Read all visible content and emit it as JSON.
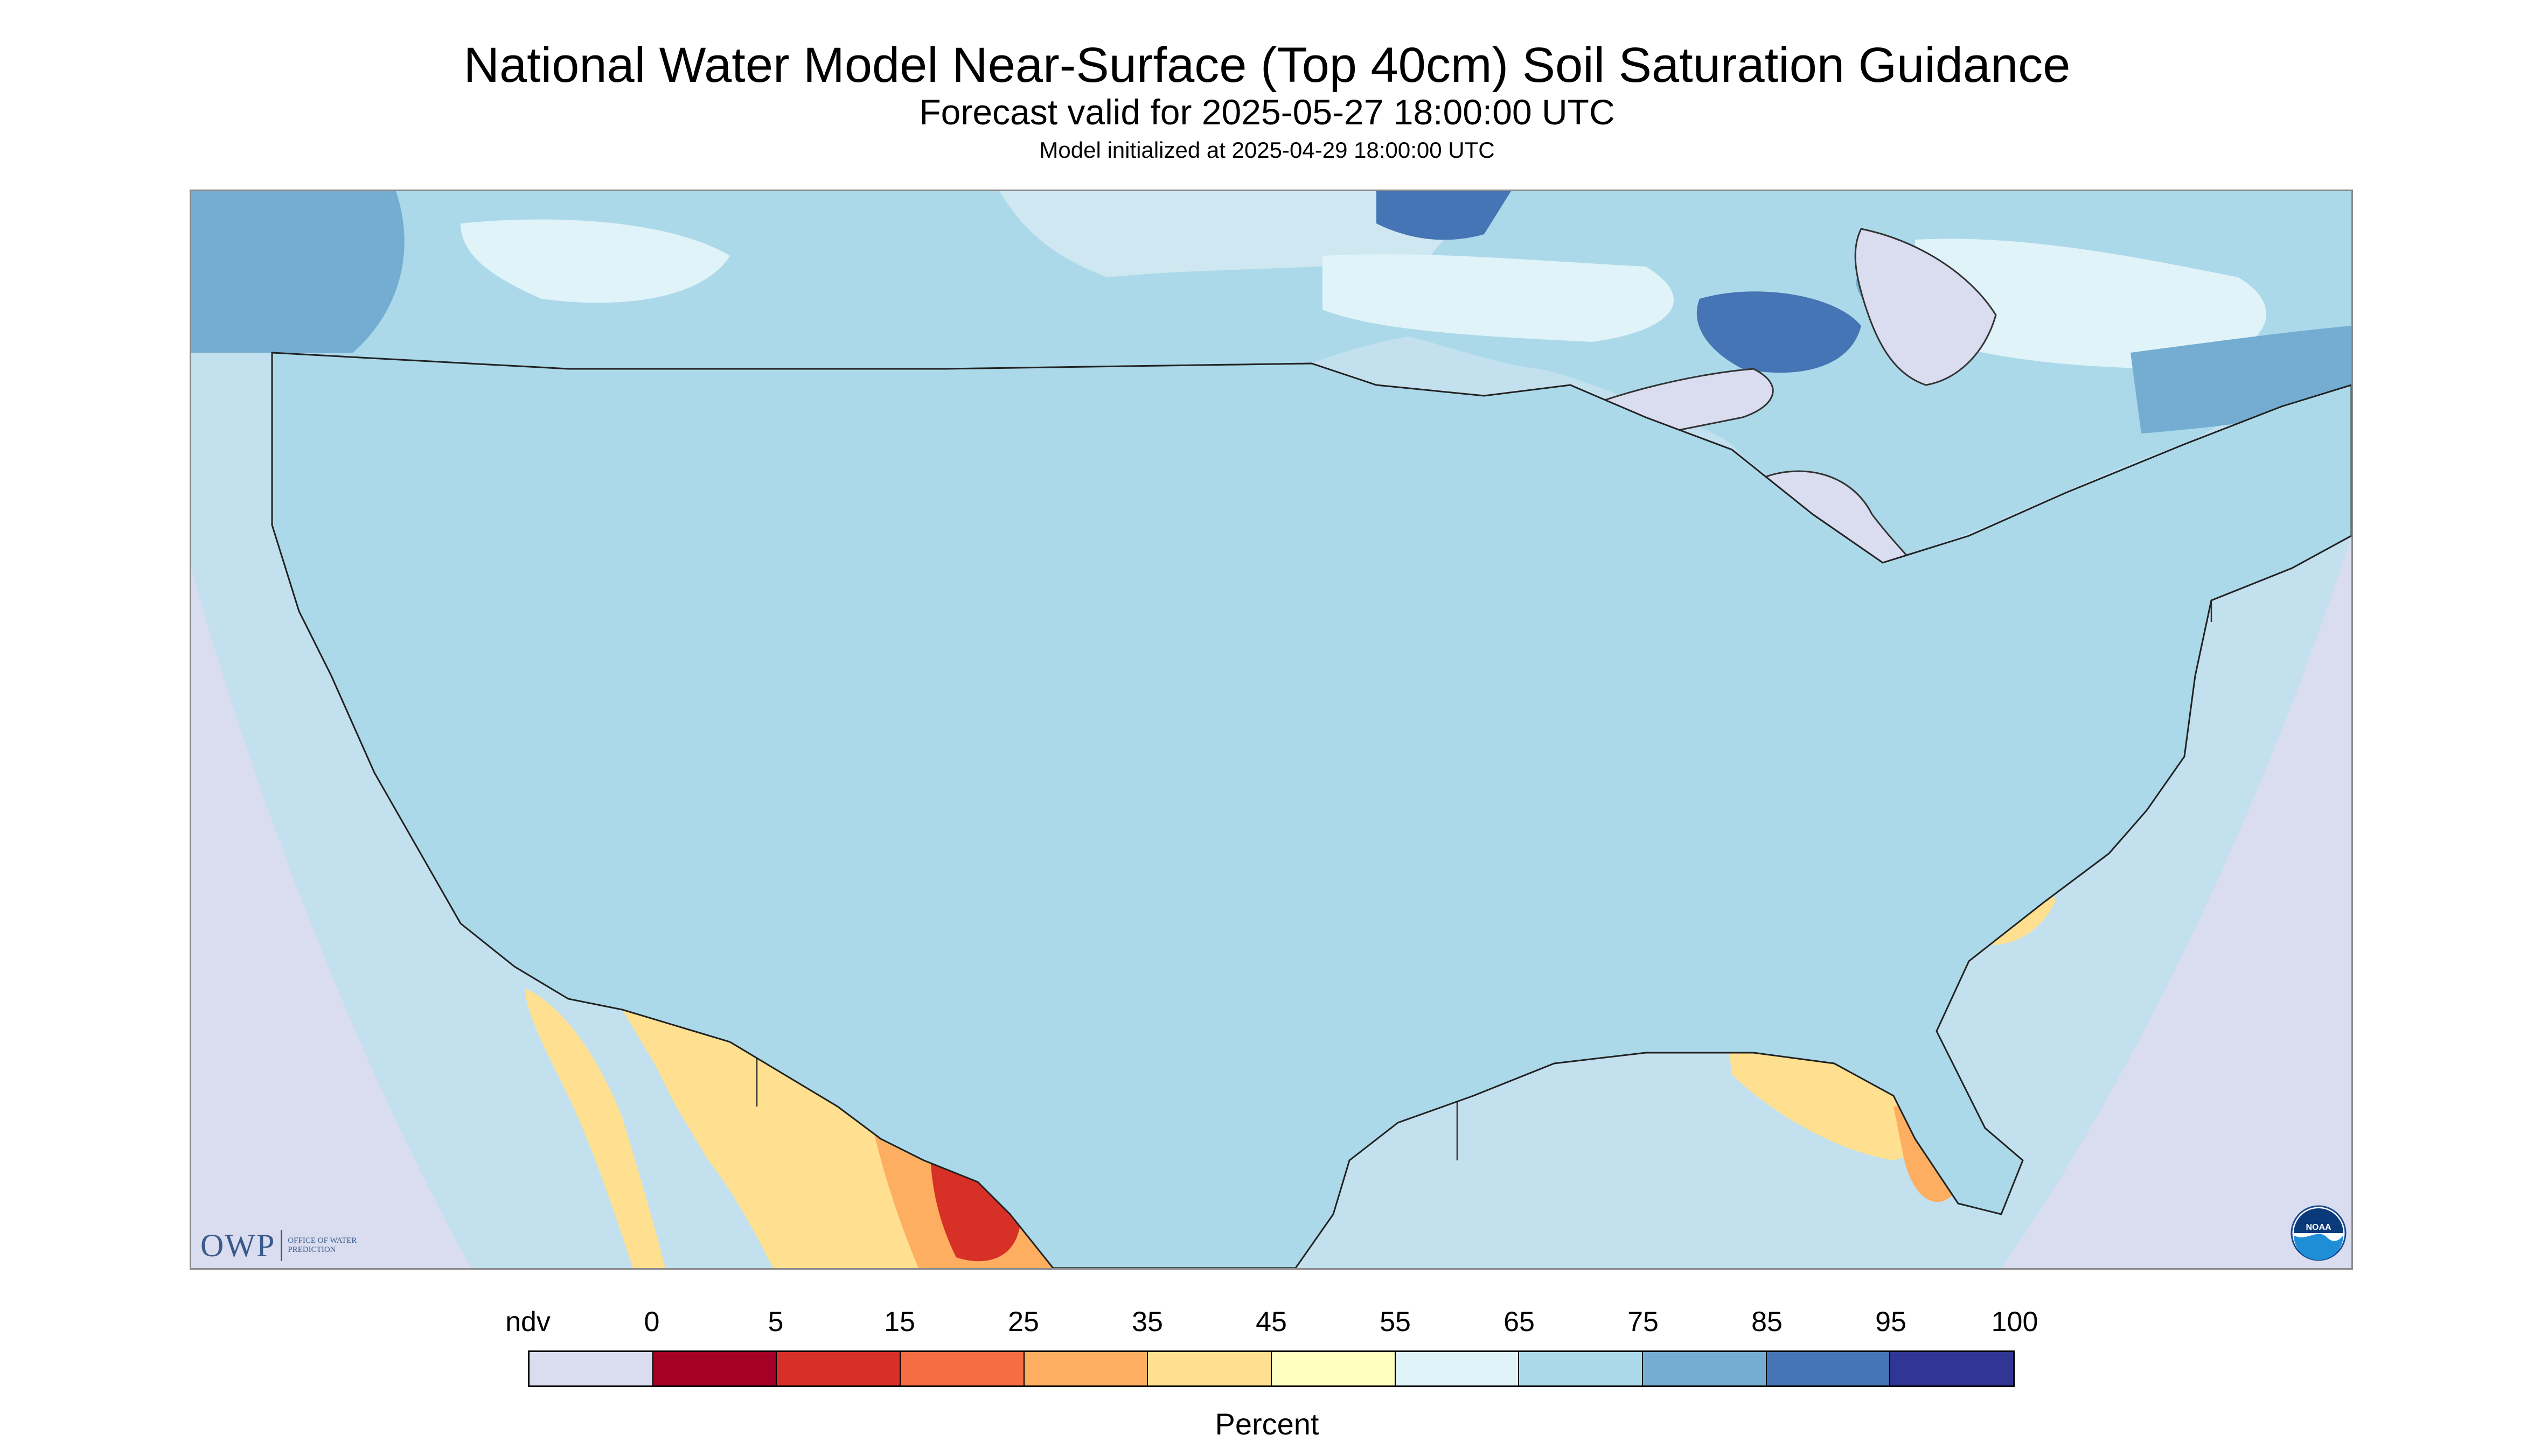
{
  "header": {
    "title": "National Water Model Near-Surface (Top 40cm) Soil Saturation Guidance",
    "forecast_valid": "Forecast valid for 2025-05-27 18:00:00 UTC",
    "initialized": "Model initialized at 2025-04-29 18:00:00 UTC"
  },
  "map": {
    "ndv_color": "#dadcef",
    "water_color": "#dadcef",
    "boundary_color": "#333333"
  },
  "legend": {
    "unit": "Percent",
    "labels": [
      "ndv",
      "0",
      "5",
      "15",
      "25",
      "35",
      "45",
      "55",
      "65",
      "75",
      "85",
      "95",
      "100"
    ],
    "colors": [
      "#dadcef",
      "#a50026",
      "#d73027",
      "#f46d43",
      "#fdae61",
      "#fee090",
      "#ffffbf",
      "#e0f3f8",
      "#abd9e9",
      "#74add1",
      "#4575b4",
      "#313695"
    ]
  },
  "logos": {
    "owp_text": "OWP",
    "owp_full": "OFFICE OF WATER PREDICTION",
    "noaa": "NOAA"
  }
}
